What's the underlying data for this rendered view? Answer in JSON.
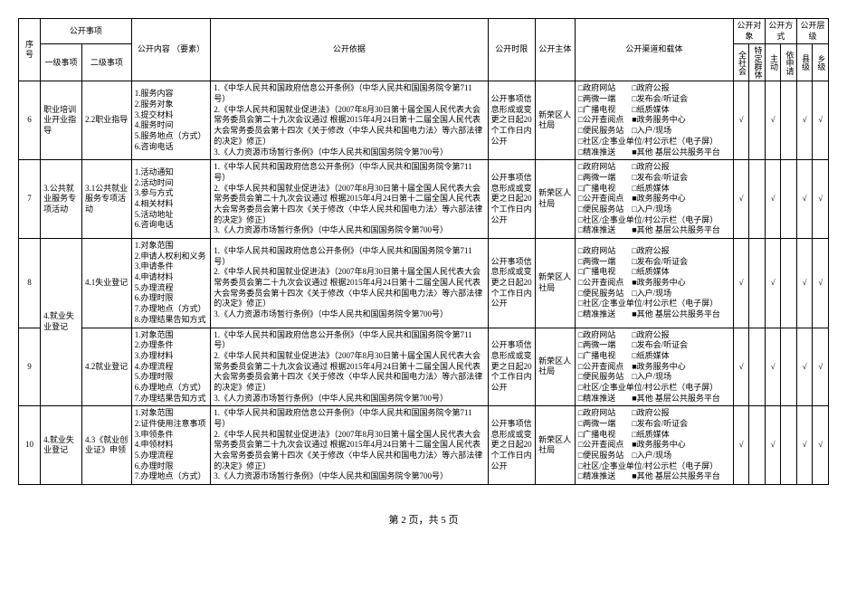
{
  "headers": {
    "seq": "序号",
    "openItem": "公开事项",
    "level1": "一级事项",
    "level2": "二级事项",
    "content": "公开内容\n（要素）",
    "basis": "公开依据",
    "timeLimit": "公开时限",
    "subject": "公开主体",
    "channel": "公开渠道和载体",
    "target": "公开对象",
    "method": "公开方式",
    "level": "公开层级",
    "allSociety": "全社会",
    "specGroup": "特定群体",
    "active": "主动",
    "byApp": "依申请",
    "county": "县级",
    "township": "乡级"
  },
  "rows": [
    {
      "seq": "6",
      "lvl1": "职业培训业开业指导",
      "lvl2": "2.2职业指导",
      "content": "1.服务内容\n2.服务对象\n3.提交材料\n4.服务时间\n5.服务地点（方式）\n6.咨询电话",
      "basis": "1.《中华人民共和国政府信息公开条例》（中华人民共和国国务院令第711号）\n2.《中华人民共和国就业促进法》（2007年8月30日第十届全国人民代表大会常务委员会第二十九次会议通过 根据2015年4月24日第十二届全国人民代表大会常务委员会第十四次《关于修改〈中华人民共和国电力法〉等六部法律的决定》修正）\n3.《人力资源市场暂行条例》（中华人民共和国国务院令第700号）",
      "time": "公开事项信息形成或变更之日起20个工作日内公开",
      "subj": "新荣区人社局",
      "channel": "□政府网站　　□政府公报\n□两微一端　　□发布会/听证会\n□广播电视　　□纸质媒体\n□公开查阅点　■政务服务中心\n□便民服务站　□入户/现场\n□社区/企事业单位/村公示栏（电子屏）\n□精准推送　　■其他 基层公共服务平台",
      "c1": "√",
      "c2": "",
      "c3": "√",
      "c4": "",
      "c5": "√",
      "c6": "√"
    },
    {
      "seq": "7",
      "lvl1": "3.公共就业服务专项活动",
      "lvl2": "3.1公共就业服务专项活动",
      "content": "1.活动通知\n2.活动时间\n3.参与方式\n4.相关材料\n5.活动地址\n6.咨询电话",
      "basis": "1.《中华人民共和国政府信息公开条例》（中华人民共和国国务院令第711号）\n2.《中华人民共和国就业促进法》（2007年8月30日第十届全国人民代表大会常务委员会第二十九次会议通过 根据2015年4月24日第十二届全国人民代表大会常务委员会第十四次《关于修改〈中华人民共和国电力法〉等六部法律的决定》修正）\n3.《人力资源市场暂行条例》（中华人民共和国国务院令第700号）",
      "time": "公开事项信息形成或变更之日起20个工作日内公开",
      "subj": "新荣区人社局",
      "channel": "□政府网站　　□政府公报\n□两微一端　　□发布会/听证会\n□广播电视　　□纸质媒体\n□公开查阅点　■政务服务中心\n□便民服务站　□入户/现场\n□社区/企事业单位/村公示栏（电子屏）\n□精准推送　　■其他 基层公共服务平台",
      "c1": "√",
      "c2": "",
      "c3": "√",
      "c4": "",
      "c5": "√",
      "c6": "√"
    },
    {
      "seq": "8",
      "lvl1": "",
      "lvl2": "4.1失业登记",
      "content": "1.对象范围\n2.申请人权利和义务\n3.申请条件\n4.申请材料\n5.办理流程\n6.办理时限\n7.办理地点（方式）\n8.办理结果告知方式",
      "basis": "1.《中华人民共和国政府信息公开条例》（中华人民共和国国务院令第711号）\n2.《中华人民共和国就业促进法》（2007年8月30日第十届全国人民代表大会常务委员会第二十九次会议通过 根据2015年4月24日第十二届全国人民代表大会常务委员会第十四次《关于修改〈中华人民共和国电力法〉等六部法律的决定》修正）\n3.《人力资源市场暂行条例》（中华人民共和国国务院令第700号）",
      "time": "公开事项信息形成或变更之日起20个工作日内公开",
      "subj": "新荣区人社局",
      "channel": "□政府网站　　□政府公报\n□两微一端　　□发布会/听证会\n□广播电视　　□纸质媒体\n□公开查阅点　■政务服务中心\n□便民服务站　□入户/现场\n□社区/企事业单位/村公示栏（电子屏）\n□精准推送　　■其他 基层公共服务平台",
      "c1": "√",
      "c2": "",
      "c3": "√",
      "c4": "",
      "c5": "√",
      "c6": "√"
    },
    {
      "seq": "9",
      "lvl1": "4.就业失业登记",
      "lvl2": "4.2就业登记",
      "content": "1.对象范围\n2.办理条件\n3.办理材料\n4.办理流程\n5.办理时限\n6.办理地点（方式）\n7.办理结果告知方式",
      "basis": "1.《中华人民共和国政府信息公开条例》（中华人民共和国国务院令第711号）\n2.《中华人民共和国就业促进法》（2007年8月30日第十届全国人民代表大会常务委员会第二十九次会议通过 根据2015年4月24日第十二届全国人民代表大会常务委员会第十四次《关于修改〈中华人民共和国电力法〉等六部法律的决定》修正）\n3.《人力资源市场暂行条例》（中华人民共和国国务院令第700号）",
      "time": "公开事项信息形成或变更之日起20个工作日内公开",
      "subj": "新荣区人社局",
      "channel": "□政府网站　　□政府公报\n□两微一端　　□发布会/听证会\n□广播电视　　□纸质媒体\n□公开查阅点　■政务服务中心\n□便民服务站　□入户/现场\n□社区/企事业单位/村公示栏（电子屏）\n□精准推送　　■其他 基层公共服务平台",
      "c1": "√",
      "c2": "",
      "c3": "√",
      "c4": "",
      "c5": "√",
      "c6": "√"
    },
    {
      "seq": "10",
      "lvl1": "4.就业失业登记",
      "lvl2": "4.3《就业创业证》申领",
      "content": "1.对象范围\n2.证件使用注意事项\n3.申领条件\n4.申领材料\n5.办理流程\n6.办理时限\n7.办理地点（方式）",
      "basis": "1.《中华人民共和国政府信息公开条例》（中华人民共和国国务院令第711号）\n2.《中华人民共和国就业促进法》（2007年8月30日第十届全国人民代表大会常务委员会第二十九次会议通过 根据2015年4月24日第十二届全国人民代表大会常务委员会第十四次《关于修改〈中华人民共和国电力法〉等六部法律的决定》修正）\n3.《人力资源市场暂行条例》（中华人民共和国国务院令第700号）",
      "time": "公开事项信息形成或变更之日起20个工作日内公开",
      "subj": "新荣区人社局",
      "channel": "□政府网站　　□政府公报\n□两微一端　　□发布会/听证会\n□广播电视　　□纸质媒体\n□公开查阅点　■政务服务中心\n□便民服务站　□入户/现场\n□社区/企事业单位/村公示栏（电子屏）\n□精准推送　　■其他 基层公共服务平台",
      "c1": "√",
      "c2": "",
      "c3": "√",
      "c4": "",
      "c5": "√",
      "c6": "√"
    }
  ],
  "footer": "第 2 页，共 5 页"
}
